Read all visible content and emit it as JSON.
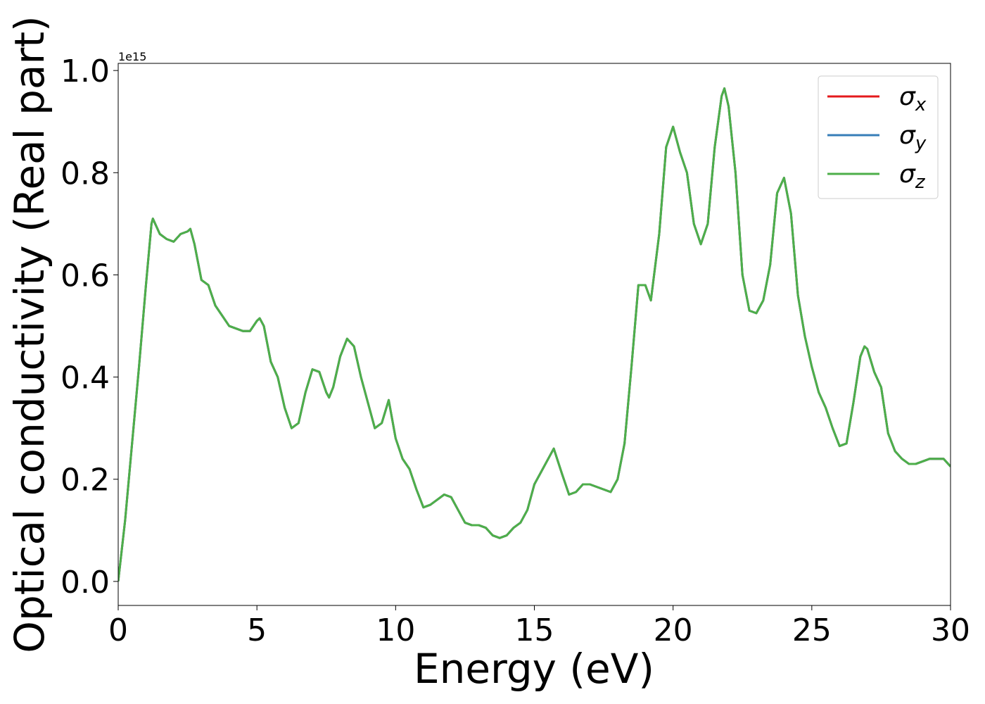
{
  "chart_data": {
    "type": "line",
    "xlabel": "Energy (eV)",
    "ylabel": "Optical conductivity (Real part)",
    "y_offset_text": "1e15",
    "x": [
      0,
      0.25,
      0.5,
      0.75,
      1.0,
      1.2,
      1.25,
      1.5,
      1.75,
      2.0,
      2.25,
      2.5,
      2.6,
      2.75,
      3.0,
      3.25,
      3.5,
      3.75,
      4.0,
      4.5,
      4.75,
      5.0,
      5.1,
      5.25,
      5.5,
      5.75,
      6.0,
      6.25,
      6.5,
      6.75,
      7.0,
      7.25,
      7.5,
      7.6,
      7.75,
      8.0,
      8.25,
      8.5,
      8.75,
      9.0,
      9.25,
      9.5,
      9.75,
      10.0,
      10.25,
      10.5,
      10.75,
      11.0,
      11.25,
      11.5,
      11.75,
      12.0,
      12.25,
      12.5,
      12.75,
      13.0,
      13.25,
      13.5,
      13.75,
      14.0,
      14.25,
      14.5,
      14.75,
      15.0,
      15.25,
      15.5,
      15.7,
      16.0,
      16.25,
      16.5,
      16.75,
      17.0,
      17.5,
      17.75,
      18.0,
      18.25,
      18.5,
      18.75,
      19.0,
      19.2,
      19.5,
      19.75,
      20.0,
      20.25,
      20.5,
      20.75,
      21.0,
      21.25,
      21.5,
      21.75,
      21.85,
      22.0,
      22.25,
      22.5,
      22.75,
      23.0,
      23.25,
      23.5,
      23.75,
      24.0,
      24.25,
      24.5,
      24.75,
      25.0,
      25.25,
      25.5,
      25.75,
      26.0,
      26.25,
      26.5,
      26.75,
      26.9,
      27.0,
      27.25,
      27.5,
      27.75,
      28.0,
      28.25,
      28.5,
      28.75,
      29.0,
      29.25,
      29.5,
      29.75,
      30.0
    ],
    "series": [
      {
        "name": "σx",
        "color": "#e41a1c",
        "values": [
          0.0,
          0.12,
          0.27,
          0.42,
          0.58,
          0.7,
          0.71,
          0.68,
          0.67,
          0.665,
          0.68,
          0.685,
          0.69,
          0.66,
          0.59,
          0.58,
          0.54,
          0.52,
          0.5,
          0.49,
          0.49,
          0.51,
          0.515,
          0.5,
          0.43,
          0.4,
          0.34,
          0.3,
          0.31,
          0.37,
          0.415,
          0.41,
          0.37,
          0.36,
          0.38,
          0.44,
          0.475,
          0.46,
          0.4,
          0.35,
          0.3,
          0.31,
          0.355,
          0.28,
          0.24,
          0.22,
          0.18,
          0.145,
          0.15,
          0.16,
          0.17,
          0.165,
          0.14,
          0.115,
          0.11,
          0.11,
          0.105,
          0.09,
          0.085,
          0.09,
          0.105,
          0.115,
          0.14,
          0.19,
          0.215,
          0.24,
          0.26,
          0.21,
          0.17,
          0.175,
          0.19,
          0.19,
          0.18,
          0.175,
          0.2,
          0.27,
          0.42,
          0.58,
          0.58,
          0.55,
          0.68,
          0.85,
          0.89,
          0.84,
          0.8,
          0.7,
          0.66,
          0.7,
          0.85,
          0.95,
          0.965,
          0.93,
          0.8,
          0.6,
          0.53,
          0.525,
          0.55,
          0.62,
          0.76,
          0.79,
          0.72,
          0.56,
          0.48,
          0.42,
          0.37,
          0.34,
          0.3,
          0.265,
          0.27,
          0.35,
          0.44,
          0.46,
          0.455,
          0.41,
          0.38,
          0.29,
          0.255,
          0.24,
          0.23,
          0.23,
          0.235,
          0.24,
          0.24,
          0.24,
          0.225
        ]
      },
      {
        "name": "σy",
        "color": "#377eb8",
        "values": [
          0.0,
          0.12,
          0.27,
          0.42,
          0.58,
          0.7,
          0.71,
          0.68,
          0.67,
          0.665,
          0.68,
          0.685,
          0.69,
          0.66,
          0.59,
          0.58,
          0.54,
          0.52,
          0.5,
          0.49,
          0.49,
          0.51,
          0.515,
          0.5,
          0.43,
          0.4,
          0.34,
          0.3,
          0.31,
          0.37,
          0.415,
          0.41,
          0.37,
          0.36,
          0.38,
          0.44,
          0.475,
          0.46,
          0.4,
          0.35,
          0.3,
          0.31,
          0.355,
          0.28,
          0.24,
          0.22,
          0.18,
          0.145,
          0.15,
          0.16,
          0.17,
          0.165,
          0.14,
          0.115,
          0.11,
          0.11,
          0.105,
          0.09,
          0.085,
          0.09,
          0.105,
          0.115,
          0.14,
          0.19,
          0.215,
          0.24,
          0.26,
          0.21,
          0.17,
          0.175,
          0.19,
          0.19,
          0.18,
          0.175,
          0.2,
          0.27,
          0.42,
          0.58,
          0.58,
          0.55,
          0.68,
          0.85,
          0.89,
          0.84,
          0.8,
          0.7,
          0.66,
          0.7,
          0.85,
          0.95,
          0.965,
          0.93,
          0.8,
          0.6,
          0.53,
          0.525,
          0.55,
          0.62,
          0.76,
          0.79,
          0.72,
          0.56,
          0.48,
          0.42,
          0.37,
          0.34,
          0.3,
          0.265,
          0.27,
          0.35,
          0.44,
          0.46,
          0.455,
          0.41,
          0.38,
          0.29,
          0.255,
          0.24,
          0.23,
          0.23,
          0.235,
          0.24,
          0.24,
          0.24,
          0.225
        ]
      },
      {
        "name": "σz",
        "color": "#4daf4a",
        "values": [
          0.0,
          0.12,
          0.27,
          0.42,
          0.58,
          0.7,
          0.71,
          0.68,
          0.67,
          0.665,
          0.68,
          0.685,
          0.69,
          0.66,
          0.59,
          0.58,
          0.54,
          0.52,
          0.5,
          0.49,
          0.49,
          0.51,
          0.515,
          0.5,
          0.43,
          0.4,
          0.34,
          0.3,
          0.31,
          0.37,
          0.415,
          0.41,
          0.37,
          0.36,
          0.38,
          0.44,
          0.475,
          0.46,
          0.4,
          0.35,
          0.3,
          0.31,
          0.355,
          0.28,
          0.24,
          0.22,
          0.18,
          0.145,
          0.15,
          0.16,
          0.17,
          0.165,
          0.14,
          0.115,
          0.11,
          0.11,
          0.105,
          0.09,
          0.085,
          0.09,
          0.105,
          0.115,
          0.14,
          0.19,
          0.215,
          0.24,
          0.26,
          0.21,
          0.17,
          0.175,
          0.19,
          0.19,
          0.18,
          0.175,
          0.2,
          0.27,
          0.42,
          0.58,
          0.58,
          0.55,
          0.68,
          0.85,
          0.89,
          0.84,
          0.8,
          0.7,
          0.66,
          0.7,
          0.85,
          0.95,
          0.965,
          0.93,
          0.8,
          0.6,
          0.53,
          0.525,
          0.55,
          0.62,
          0.76,
          0.79,
          0.72,
          0.56,
          0.48,
          0.42,
          0.37,
          0.34,
          0.3,
          0.265,
          0.27,
          0.35,
          0.44,
          0.46,
          0.455,
          0.41,
          0.38,
          0.29,
          0.255,
          0.24,
          0.23,
          0.23,
          0.235,
          0.24,
          0.24,
          0.24,
          0.225
        ]
      }
    ],
    "xlim": [
      0,
      30
    ],
    "xticks": [
      0,
      5,
      10,
      15,
      20,
      25,
      30
    ],
    "ylim": [
      -0.047,
      1.014
    ],
    "yticks": [
      {
        "value": 0,
        "label": "0.0"
      },
      {
        "value": 0.2,
        "label": "0.2"
      },
      {
        "value": 0.4,
        "label": "0.4"
      },
      {
        "value": 0.6,
        "label": "0.6"
      },
      {
        "value": 0.8,
        "label": "0.8"
      },
      {
        "value": 1.0,
        "label": "1.0"
      }
    ],
    "grid": false,
    "legend": "upper right"
  }
}
